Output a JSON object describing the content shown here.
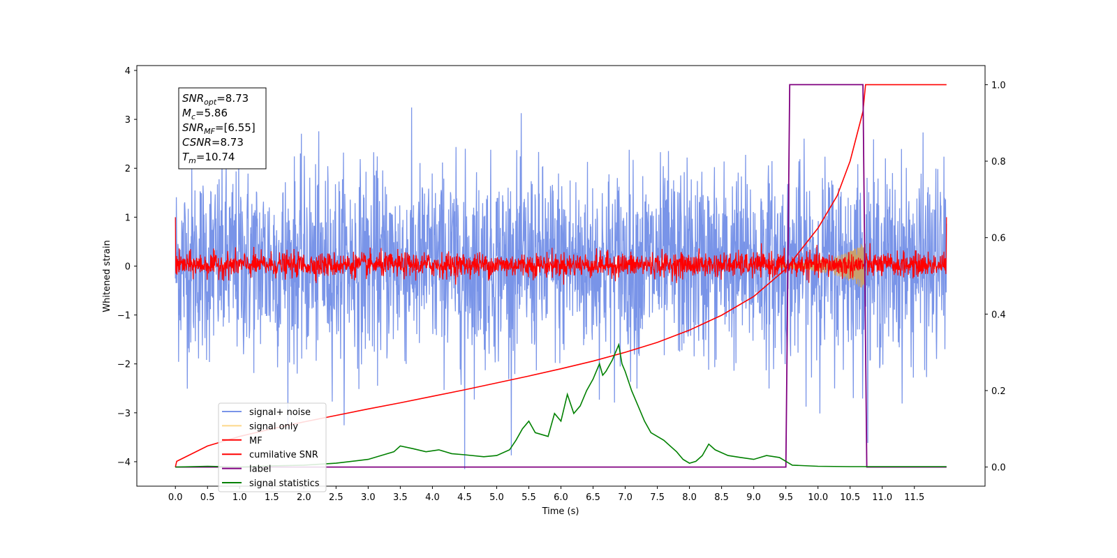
{
  "chart_data": {
    "type": "line",
    "xlabel": "Time (s)",
    "ylabel_left": "Whitened strain",
    "ylabel_right": "",
    "xlim": [
      -0.6,
      12.6
    ],
    "ylim_left": [
      -4.5,
      4.1
    ],
    "ylim_right": [
      -0.05,
      1.05
    ],
    "grid": false,
    "x_ticks": [
      0.0,
      0.5,
      1.0,
      1.5,
      2.0,
      2.5,
      3.0,
      3.5,
      4.0,
      4.5,
      5.0,
      5.5,
      6.0,
      6.5,
      7.0,
      7.5,
      8.0,
      8.5,
      9.0,
      9.5,
      10.0,
      10.5,
      11.0,
      11.5
    ],
    "x_tick_labels": [
      "0.0",
      "0.5",
      "1.0",
      "1.5",
      "2.0",
      "2.5",
      "3.0",
      "3.5",
      "4.0",
      "4.5",
      "5.0",
      "5.5",
      "6.0",
      "6.5",
      "7.0",
      "7.5",
      "8.0",
      "8.5",
      "9.0",
      "9.5",
      "10.0",
      "10.5",
      "11.0",
      "11.5"
    ],
    "y_left_ticks": [
      4,
      3,
      2,
      1,
      0,
      -1,
      -2,
      -3,
      -4
    ],
    "y_left_tick_labels": [
      "4",
      "3",
      "2",
      "1",
      "0",
      "−1",
      "−2",
      "−3",
      "−4"
    ],
    "y_right_ticks": [
      1.0,
      0.8,
      0.6,
      0.4,
      0.2,
      0.0
    ],
    "y_right_tick_labels": [
      "1.0",
      "0.8",
      "0.6",
      "0.4",
      "0.2",
      "0.0"
    ],
    "info_box": [
      {
        "sym": "SNR",
        "sub": "opt",
        "value": "=8.73"
      },
      {
        "sym": "M",
        "sub": "c",
        "value": "=5.86"
      },
      {
        "sym": "SNR",
        "sub": "MF",
        "value": "=[6.55]"
      },
      {
        "sym": "CSNR",
        "sub": "",
        "value": "=8.73"
      },
      {
        "sym": "T",
        "sub": "m",
        "value": "=10.74"
      }
    ],
    "legend": {
      "position": "lower-left",
      "entries": [
        {
          "label": "signal+ noise",
          "color": "#7994e8"
        },
        {
          "label": "signal only",
          "color": "#fdd88a"
        },
        {
          "label": "MF",
          "color": "#ff0000"
        },
        {
          "label": "cumilative SNR",
          "color": "#ff0000"
        },
        {
          "label": "label",
          "color": "#800080"
        },
        {
          "label": "signal statistics",
          "color": "#008000"
        }
      ]
    },
    "colors": {
      "noise": "#7994e8",
      "signal_only": "#c8a06e",
      "mf": "#ff0000",
      "csnr": "#ff0000",
      "label": "#800080",
      "stats": "#008000"
    },
    "series": [
      {
        "name": "signal+ noise",
        "axis": "left",
        "kind": "noise",
        "x_range": [
          0.0,
          12.0
        ],
        "envelope_upper": 2.0,
        "envelope_lower": -1.9,
        "peak_max": 3.68,
        "peak_min": -4.15,
        "note_spike": {
          "x": 4.5,
          "y": -4.15
        }
      },
      {
        "name": "signal only",
        "axis": "left",
        "kind": "chirp_envelope",
        "x": [
          9.4,
          9.6,
          9.8,
          10.0,
          10.2,
          10.4,
          10.6,
          10.74
        ],
        "amplitude": [
          0.03,
          0.05,
          0.08,
          0.12,
          0.17,
          0.25,
          0.38,
          0.52
        ]
      },
      {
        "name": "MF",
        "axis": "left",
        "kind": "noise",
        "x_range": [
          0.0,
          12.0
        ],
        "envelope_upper": 0.3,
        "envelope_lower": -0.25,
        "peak_max": 0.6,
        "peak_min": -0.38
      },
      {
        "name": "cumilative SNR",
        "axis": "right",
        "x": [
          0.0,
          0.02,
          0.5,
          1.0,
          1.5,
          2.0,
          2.5,
          3.0,
          3.5,
          4.0,
          4.5,
          5.0,
          5.5,
          6.0,
          6.5,
          7.0,
          7.5,
          8.0,
          8.5,
          9.0,
          9.5,
          10.0,
          10.3,
          10.5,
          10.7,
          10.74,
          12.0
        ],
        "y": [
          0.0,
          0.015,
          0.055,
          0.08,
          0.1,
          0.118,
          0.135,
          0.152,
          0.168,
          0.185,
          0.202,
          0.22,
          0.238,
          0.257,
          0.277,
          0.3,
          0.326,
          0.358,
          0.397,
          0.446,
          0.518,
          0.625,
          0.71,
          0.8,
          0.93,
          1.0,
          1.0
        ]
      },
      {
        "name": "label",
        "axis": "right",
        "x": [
          0.0,
          9.5,
          9.56,
          10.7,
          10.76,
          12.0
        ],
        "y": [
          0.0,
          0.0,
          1.0,
          1.0,
          0.0,
          0.0
        ]
      },
      {
        "name": "signal statistics",
        "axis": "right",
        "x": [
          0.0,
          0.5,
          1.0,
          1.5,
          2.0,
          2.5,
          3.0,
          3.2,
          3.4,
          3.5,
          3.7,
          3.9,
          4.1,
          4.3,
          4.5,
          4.8,
          5.0,
          5.2,
          5.3,
          5.4,
          5.5,
          5.6,
          5.8,
          5.9,
          6.0,
          6.1,
          6.2,
          6.3,
          6.4,
          6.5,
          6.6,
          6.65,
          6.7,
          6.8,
          6.9,
          6.95,
          7.0,
          7.1,
          7.2,
          7.3,
          7.4,
          7.6,
          7.8,
          7.9,
          8.0,
          8.1,
          8.2,
          8.3,
          8.4,
          8.6,
          8.8,
          9.0,
          9.2,
          9.4,
          9.6,
          10.0,
          10.5,
          11.0,
          11.5,
          12.0
        ],
        "y": [
          0.0,
          0.002,
          0.0,
          0.003,
          0.005,
          0.01,
          0.02,
          0.03,
          0.04,
          0.055,
          0.048,
          0.04,
          0.045,
          0.035,
          0.032,
          0.027,
          0.03,
          0.045,
          0.07,
          0.1,
          0.12,
          0.09,
          0.08,
          0.14,
          0.12,
          0.19,
          0.14,
          0.16,
          0.2,
          0.23,
          0.27,
          0.24,
          0.25,
          0.28,
          0.32,
          0.27,
          0.25,
          0.2,
          0.16,
          0.12,
          0.09,
          0.07,
          0.04,
          0.02,
          0.01,
          0.015,
          0.03,
          0.06,
          0.045,
          0.03,
          0.025,
          0.02,
          0.03,
          0.025,
          0.005,
          0.002,
          0.001,
          0.001,
          0.001,
          0.001
        ]
      }
    ]
  }
}
